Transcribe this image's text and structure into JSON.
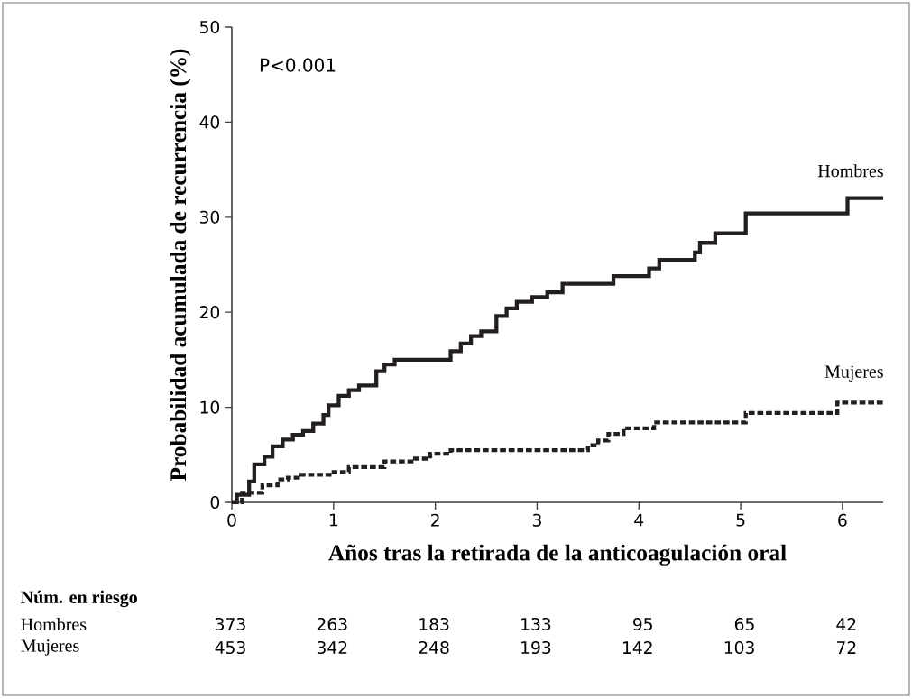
{
  "chart_data": {
    "type": "step",
    "xlabel": "Años tras la retirada de la anticoagulación oral",
    "ylabel": "Probabilidad acumulada de recurrencia (%)",
    "xlim": [
      0,
      6.4
    ],
    "ylim": [
      0,
      50
    ],
    "xticks": [
      0,
      1,
      2,
      3,
      4,
      5,
      6
    ],
    "yticks": [
      0,
      10,
      20,
      30,
      40,
      50
    ],
    "grid": false,
    "legend": false,
    "series": [
      {
        "name": "Hombres",
        "color": "#231f20",
        "line_style": "solid",
        "x": [
          0,
          0.05,
          0.17,
          0.22,
          0.32,
          0.4,
          0.5,
          0.6,
          0.7,
          0.8,
          0.9,
          0.95,
          1.05,
          1.15,
          1.25,
          1.42,
          1.5,
          1.6,
          2.15,
          2.25,
          2.35,
          2.45,
          2.6,
          2.7,
          2.8,
          2.95,
          3.1,
          3.25,
          3.75,
          4.1,
          4.2,
          4.55,
          4.6,
          4.75,
          5.05,
          6.05,
          6.4
        ],
        "values": [
          0,
          0.8,
          2.2,
          4,
          4.8,
          5.9,
          6.6,
          7.1,
          7.5,
          8.3,
          9.2,
          10.2,
          11.2,
          11.8,
          12.3,
          13.8,
          14.5,
          15,
          15.9,
          16.7,
          17.5,
          18,
          19.6,
          20.4,
          21.1,
          21.6,
          22.1,
          23,
          23.8,
          24.6,
          25.5,
          26.3,
          27.3,
          28.3,
          30.4,
          32,
          32
        ]
      },
      {
        "name": "Mujeres",
        "color": "#231f20",
        "line_style": "dashed",
        "x": [
          0,
          0.1,
          0.3,
          0.45,
          0.55,
          0.65,
          1.0,
          1.15,
          1.5,
          1.8,
          1.95,
          2.15,
          3.5,
          3.6,
          3.7,
          3.85,
          4.15,
          5.05,
          5.95,
          6.4
        ],
        "values": [
          0,
          1,
          1.8,
          2.4,
          2.6,
          2.9,
          3.2,
          3.7,
          4.3,
          4.6,
          5.1,
          5.5,
          6.0,
          6.5,
          7.2,
          7.8,
          8.4,
          9.4,
          10.5,
          10.5
        ]
      }
    ],
    "annotations": [
      "P<0.001",
      "Núm. en riesgo",
      "Hombres",
      "373",
      "263",
      "183",
      "133",
      "95",
      "65",
      "42",
      "Mujeres",
      "453",
      "342",
      "248",
      "193",
      "142",
      "103",
      "72"
    ]
  }
}
